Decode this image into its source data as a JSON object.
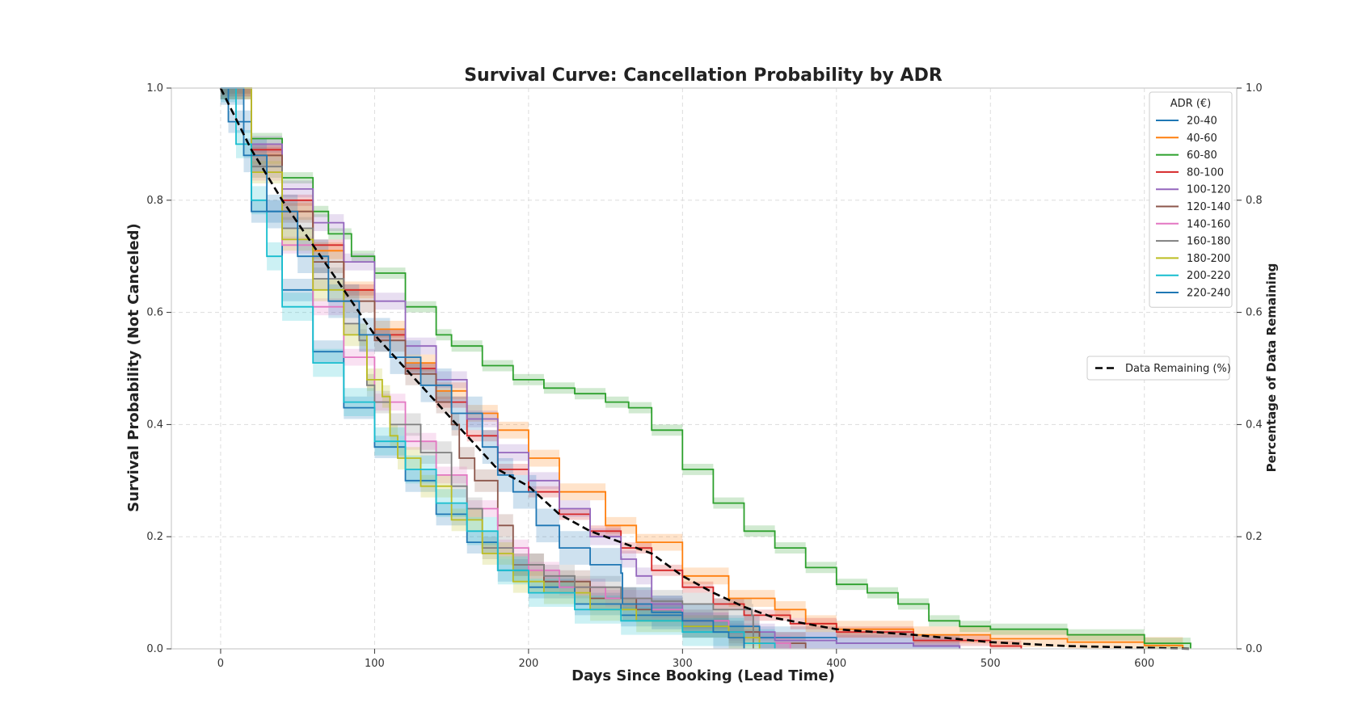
{
  "chart_data": {
    "type": "line",
    "title": "Survival Curve: Cancellation Probability by ADR",
    "xlabel": "Days Since Booking (Lead Time)",
    "ylabel": "Survival Probability (Not Canceled)",
    "ylabel_right": "Percentage of Data Remaining",
    "xlim": [
      -32,
      660
    ],
    "ylim": [
      0,
      1
    ],
    "xticks": [
      0,
      100,
      200,
      300,
      400,
      500,
      600
    ],
    "yticks": [
      0.0,
      0.2,
      0.4,
      0.6,
      0.8,
      1.0
    ],
    "ytick_labels": [
      "0.0",
      "0.2",
      "0.4",
      "0.6",
      "0.8",
      "1.0"
    ],
    "yticks_right": [
      0.0,
      0.2,
      0.4,
      0.6,
      0.8,
      1.0
    ],
    "grid": true,
    "legend_title": "ADR (€)",
    "legend_position": "top-right",
    "legend2_position": "center-right",
    "series": [
      {
        "name": "20-40",
        "color": "#1f77b4",
        "band": 0.02,
        "points": [
          [
            0,
            1.0
          ],
          [
            5,
            0.94
          ],
          [
            20,
            0.78
          ],
          [
            40,
            0.64
          ],
          [
            60,
            0.53
          ],
          [
            80,
            0.43
          ],
          [
            100,
            0.36
          ],
          [
            120,
            0.3
          ],
          [
            140,
            0.24
          ],
          [
            160,
            0.19
          ],
          [
            180,
            0.14
          ],
          [
            200,
            0.11
          ],
          [
            230,
            0.08
          ],
          [
            260,
            0.06
          ],
          [
            300,
            0.04
          ],
          [
            350,
            0.02
          ],
          [
            400,
            0.01
          ],
          [
            450,
            0.005
          ],
          [
            480,
            0.0
          ]
        ]
      },
      {
        "name": "40-60",
        "color": "#ff7f0e",
        "band": 0.015,
        "points": [
          [
            0,
            1.0
          ],
          [
            20,
            0.88
          ],
          [
            40,
            0.78
          ],
          [
            60,
            0.71
          ],
          [
            80,
            0.64
          ],
          [
            100,
            0.57
          ],
          [
            120,
            0.51
          ],
          [
            140,
            0.46
          ],
          [
            160,
            0.42
          ],
          [
            180,
            0.39
          ],
          [
            200,
            0.34
          ],
          [
            220,
            0.28
          ],
          [
            250,
            0.22
          ],
          [
            270,
            0.19
          ],
          [
            300,
            0.13
          ],
          [
            330,
            0.09
          ],
          [
            360,
            0.07
          ],
          [
            380,
            0.045
          ],
          [
            400,
            0.035
          ],
          [
            450,
            0.025
          ],
          [
            500,
            0.018
          ],
          [
            550,
            0.012
          ],
          [
            600,
            0.006
          ],
          [
            625,
            0.0
          ]
        ]
      },
      {
        "name": "60-80",
        "color": "#2ca02c",
        "band": 0.01,
        "points": [
          [
            0,
            1.0
          ],
          [
            20,
            0.91
          ],
          [
            40,
            0.84
          ],
          [
            60,
            0.78
          ],
          [
            70,
            0.74
          ],
          [
            85,
            0.7
          ],
          [
            100,
            0.67
          ],
          [
            120,
            0.61
          ],
          [
            140,
            0.56
          ],
          [
            150,
            0.54
          ],
          [
            170,
            0.505
          ],
          [
            190,
            0.48
          ],
          [
            210,
            0.465
          ],
          [
            230,
            0.455
          ],
          [
            250,
            0.44
          ],
          [
            265,
            0.43
          ],
          [
            280,
            0.39
          ],
          [
            300,
            0.32
          ],
          [
            320,
            0.26
          ],
          [
            340,
            0.21
          ],
          [
            360,
            0.18
          ],
          [
            380,
            0.145
          ],
          [
            400,
            0.115
          ],
          [
            420,
            0.1
          ],
          [
            440,
            0.08
          ],
          [
            460,
            0.05
          ],
          [
            480,
            0.04
          ],
          [
            500,
            0.035
          ],
          [
            550,
            0.025
          ],
          [
            600,
            0.01
          ],
          [
            630,
            0.0
          ]
        ]
      },
      {
        "name": "80-100",
        "color": "#d62728",
        "band": 0.01,
        "points": [
          [
            0,
            1.0
          ],
          [
            20,
            0.89
          ],
          [
            40,
            0.8
          ],
          [
            60,
            0.72
          ],
          [
            80,
            0.64
          ],
          [
            100,
            0.56
          ],
          [
            120,
            0.5
          ],
          [
            140,
            0.44
          ],
          [
            160,
            0.38
          ],
          [
            180,
            0.32
          ],
          [
            200,
            0.28
          ],
          [
            220,
            0.24
          ],
          [
            240,
            0.21
          ],
          [
            260,
            0.18
          ],
          [
            280,
            0.14
          ],
          [
            300,
            0.11
          ],
          [
            320,
            0.08
          ],
          [
            340,
            0.06
          ],
          [
            370,
            0.045
          ],
          [
            400,
            0.03
          ],
          [
            450,
            0.015
          ],
          [
            500,
            0.005
          ],
          [
            520,
            0.0
          ]
        ]
      },
      {
        "name": "100-120",
        "color": "#9467bd",
        "band": 0.015,
        "points": [
          [
            0,
            1.0
          ],
          [
            20,
            0.9
          ],
          [
            40,
            0.82
          ],
          [
            60,
            0.76
          ],
          [
            80,
            0.69
          ],
          [
            100,
            0.62
          ],
          [
            120,
            0.54
          ],
          [
            140,
            0.48
          ],
          [
            160,
            0.41
          ],
          [
            180,
            0.35
          ],
          [
            200,
            0.3
          ],
          [
            220,
            0.25
          ],
          [
            240,
            0.2
          ],
          [
            260,
            0.16
          ],
          [
            270,
            0.13
          ],
          [
            280,
            0.08
          ],
          [
            300,
            0.05
          ],
          [
            330,
            0.03
          ],
          [
            360,
            0.015
          ],
          [
            400,
            0.01
          ],
          [
            450,
            0.005
          ],
          [
            480,
            0.0
          ]
        ]
      },
      {
        "name": "120-140",
        "color": "#8c564b",
        "band": 0.02,
        "points": [
          [
            0,
            1.0
          ],
          [
            20,
            0.88
          ],
          [
            40,
            0.78
          ],
          [
            60,
            0.69
          ],
          [
            80,
            0.62
          ],
          [
            100,
            0.55
          ],
          [
            120,
            0.49
          ],
          [
            140,
            0.44
          ],
          [
            150,
            0.4
          ],
          [
            155,
            0.34
          ],
          [
            165,
            0.3
          ],
          [
            180,
            0.22
          ],
          [
            190,
            0.15
          ],
          [
            210,
            0.12
          ],
          [
            240,
            0.09
          ],
          [
            270,
            0.07
          ],
          [
            300,
            0.05
          ],
          [
            330,
            0.03
          ],
          [
            350,
            0.01
          ],
          [
            380,
            0.0
          ]
        ]
      },
      {
        "name": "140-160",
        "color": "#e377c2",
        "band": 0.015,
        "points": [
          [
            0,
            1.0
          ],
          [
            20,
            0.85
          ],
          [
            40,
            0.72
          ],
          [
            60,
            0.61
          ],
          [
            80,
            0.52
          ],
          [
            100,
            0.44
          ],
          [
            120,
            0.37
          ],
          [
            140,
            0.31
          ],
          [
            160,
            0.25
          ],
          [
            180,
            0.18
          ],
          [
            200,
            0.14
          ],
          [
            220,
            0.11
          ],
          [
            250,
            0.09
          ],
          [
            280,
            0.07
          ],
          [
            300,
            0.05
          ],
          [
            330,
            0.02
          ],
          [
            350,
            0.01
          ],
          [
            370,
            0.0
          ]
        ]
      },
      {
        "name": "160-180",
        "color": "#7f7f7f",
        "band": 0.02,
        "points": [
          [
            0,
            1.0
          ],
          [
            20,
            0.86
          ],
          [
            40,
            0.75
          ],
          [
            60,
            0.66
          ],
          [
            80,
            0.58
          ],
          [
            90,
            0.55
          ],
          [
            95,
            0.47
          ],
          [
            100,
            0.44
          ],
          [
            110,
            0.4
          ],
          [
            130,
            0.35
          ],
          [
            150,
            0.29
          ],
          [
            160,
            0.25
          ],
          [
            170,
            0.18
          ],
          [
            190,
            0.15
          ],
          [
            210,
            0.13
          ],
          [
            230,
            0.11
          ],
          [
            260,
            0.09
          ],
          [
            280,
            0.085
          ],
          [
            300,
            0.08
          ],
          [
            320,
            0.07
          ],
          [
            345,
            0.06
          ],
          [
            346,
            0.0
          ]
        ]
      },
      {
        "name": "180-200",
        "color": "#bcbd22",
        "band": 0.02,
        "points": [
          [
            0,
            1.0
          ],
          [
            20,
            0.85
          ],
          [
            40,
            0.73
          ],
          [
            60,
            0.64
          ],
          [
            80,
            0.56
          ],
          [
            95,
            0.48
          ],
          [
            105,
            0.45
          ],
          [
            110,
            0.38
          ],
          [
            115,
            0.34
          ],
          [
            130,
            0.29
          ],
          [
            150,
            0.23
          ],
          [
            170,
            0.17
          ],
          [
            190,
            0.12
          ],
          [
            210,
            0.1
          ],
          [
            240,
            0.07
          ],
          [
            270,
            0.05
          ],
          [
            300,
            0.04
          ],
          [
            330,
            0.02
          ],
          [
            350,
            0.0
          ]
        ]
      },
      {
        "name": "200-220",
        "color": "#17becf",
        "band": 0.025,
        "points": [
          [
            0,
            1.0
          ],
          [
            10,
            0.9
          ],
          [
            20,
            0.8
          ],
          [
            30,
            0.7
          ],
          [
            40,
            0.61
          ],
          [
            60,
            0.51
          ],
          [
            80,
            0.44
          ],
          [
            100,
            0.37
          ],
          [
            120,
            0.32
          ],
          [
            140,
            0.26
          ],
          [
            160,
            0.21
          ],
          [
            180,
            0.14
          ],
          [
            200,
            0.1
          ],
          [
            230,
            0.07
          ],
          [
            260,
            0.05
          ],
          [
            300,
            0.03
          ],
          [
            340,
            0.01
          ],
          [
            360,
            0.0
          ]
        ]
      },
      {
        "name": "220-240",
        "color": "#1f77b4",
        "band": 0.03,
        "points": [
          [
            0,
            1.0
          ],
          [
            15,
            0.88
          ],
          [
            30,
            0.78
          ],
          [
            50,
            0.7
          ],
          [
            70,
            0.62
          ],
          [
            90,
            0.56
          ],
          [
            110,
            0.52
          ],
          [
            130,
            0.47
          ],
          [
            150,
            0.42
          ],
          [
            170,
            0.36
          ],
          [
            180,
            0.31
          ],
          [
            190,
            0.28
          ],
          [
            205,
            0.22
          ],
          [
            220,
            0.18
          ],
          [
            240,
            0.15
          ],
          [
            260,
            0.135
          ],
          [
            261,
            0.08
          ],
          [
            280,
            0.065
          ],
          [
            300,
            0.05
          ],
          [
            320,
            0.03
          ],
          [
            330,
            0.02
          ],
          [
            340,
            0.0
          ]
        ]
      }
    ],
    "reference_series": {
      "name": "Data Remaining (%)",
      "color": "#000000",
      "style": "dashed",
      "points": [
        [
          0,
          1.0
        ],
        [
          20,
          0.89
        ],
        [
          40,
          0.8
        ],
        [
          60,
          0.72
        ],
        [
          80,
          0.64
        ],
        [
          100,
          0.56
        ],
        [
          120,
          0.5
        ],
        [
          140,
          0.44
        ],
        [
          160,
          0.38
        ],
        [
          180,
          0.32
        ],
        [
          200,
          0.29
        ],
        [
          220,
          0.24
        ],
        [
          240,
          0.21
        ],
        [
          260,
          0.19
        ],
        [
          280,
          0.17
        ],
        [
          300,
          0.13
        ],
        [
          320,
          0.1
        ],
        [
          340,
          0.075
        ],
        [
          360,
          0.055
        ],
        [
          380,
          0.045
        ],
        [
          400,
          0.035
        ],
        [
          450,
          0.025
        ],
        [
          500,
          0.012
        ],
        [
          550,
          0.005
        ],
        [
          600,
          0.002
        ],
        [
          630,
          0.0
        ]
      ]
    }
  }
}
